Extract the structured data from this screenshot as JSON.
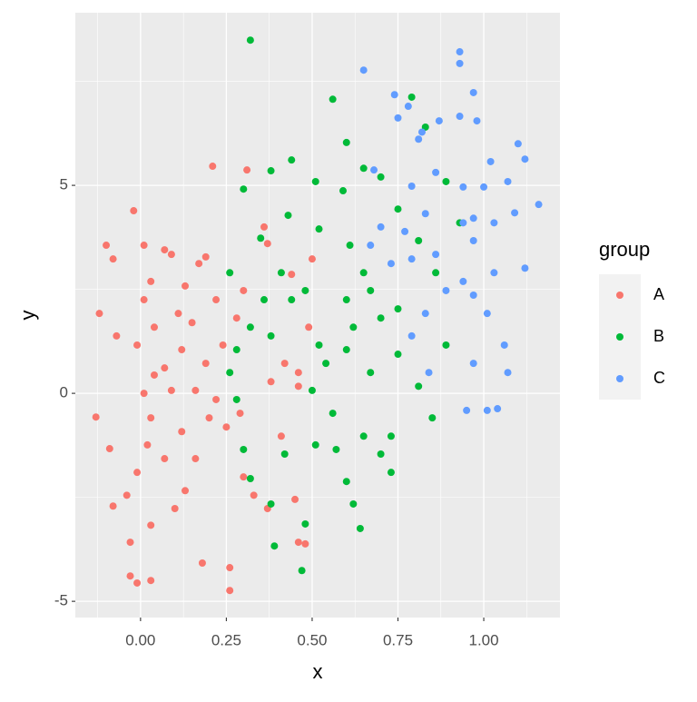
{
  "chart_data": {
    "type": "scatter",
    "x_label": "x",
    "y_label": "y",
    "xlim": [
      -0.19,
      1.222
    ],
    "ylim": [
      -5.39,
      9.15
    ],
    "xticks": [
      {
        "value": 0,
        "label": "0.00"
      },
      {
        "value": 0.25,
        "label": "0.25"
      },
      {
        "value": 0.5,
        "label": "0.50"
      },
      {
        "value": 0.75,
        "label": "0.75"
      },
      {
        "value": 1,
        "label": "1.00"
      }
    ],
    "yticks": [
      -5,
      0,
      5
    ],
    "grid": true,
    "legend_title": "group",
    "legend_position": "right",
    "series": [
      {
        "name": "A",
        "color": "#F8766D",
        "x": [
          -0.13,
          -0.12,
          -0.1,
          -0.08,
          -0.09,
          -0.08,
          -0.07,
          -0.02,
          -0.03,
          -0.03,
          -0.01,
          0.03,
          0.01,
          0.01,
          0.03,
          0.04,
          -0.01,
          0.01,
          0.03,
          0.02,
          -0.01,
          0.03,
          0.07,
          0.09,
          0.07,
          0.09,
          0.11,
          0.13,
          0.15,
          0.17,
          0.19,
          0.21,
          0.31,
          0.18,
          0.26,
          0.26,
          0.1,
          0.13,
          0.16,
          0.12,
          0.2,
          0.22,
          0.25,
          0.19,
          0.24,
          0.22,
          0.28,
          0.3,
          0.36,
          0.37,
          0.38,
          0.41,
          0.45,
          0.46,
          0.48,
          0.37,
          0.33,
          0.3,
          0.07,
          -0.04,
          0.29,
          0.42,
          0.46,
          0.49,
          0.44,
          0.5,
          0.12,
          0.16,
          0.04,
          0.46
        ],
        "values": [
          -0.57,
          1.92,
          3.56,
          3.23,
          -1.33,
          -2.71,
          1.38,
          4.39,
          -3.58,
          -4.39,
          -4.56,
          -4.5,
          3.56,
          2.25,
          2.69,
          1.59,
          1.16,
          0,
          -0.59,
          -1.24,
          -1.9,
          -3.17,
          0.61,
          0.07,
          3.45,
          3.34,
          1.92,
          2.58,
          1.7,
          3.12,
          3.28,
          5.46,
          5.37,
          -4.08,
          -4.19,
          -4.74,
          -2.77,
          -2.34,
          -1.57,
          -0.92,
          -0.59,
          -0.15,
          -0.81,
          0.72,
          1.16,
          2.25,
          1.81,
          2.47,
          4,
          3.6,
          0.28,
          -1.03,
          -2.55,
          -3.58,
          -3.62,
          -2.77,
          -2.45,
          -2.01,
          -1.57,
          -2.45,
          -0.48,
          0.72,
          0.5,
          1.59,
          2.86,
          3.23,
          1.05,
          0.07,
          0.44,
          0.17
        ]
      },
      {
        "name": "B",
        "color": "#00BA38",
        "x": [
          0.32,
          0.3,
          0.38,
          0.44,
          0.56,
          0.6,
          0.65,
          0.79,
          0.83,
          0.89,
          0.93,
          0.51,
          0.59,
          0.52,
          0.61,
          0.7,
          0.75,
          0.81,
          0.86,
          0.89,
          0.81,
          0.85,
          0.73,
          0.73,
          0.7,
          0.65,
          0.62,
          0.64,
          0.6,
          0.57,
          0.56,
          0.51,
          0.48,
          0.47,
          0.39,
          0.38,
          0.32,
          0.42,
          0.3,
          0.28,
          0.26,
          0.28,
          0.32,
          0.26,
          0.36,
          0.38,
          0.44,
          0.48,
          0.52,
          0.54,
          0.6,
          0.62,
          0.67,
          0.7,
          0.75,
          0.65,
          0.6,
          0.41,
          0.35,
          0.43,
          0.67,
          0.75,
          0.5
        ],
        "values": [
          8.49,
          4.91,
          5.35,
          5.61,
          7.07,
          6.03,
          5.41,
          7.12,
          6.4,
          5.09,
          4.1,
          5.09,
          4.87,
          3.95,
          3.56,
          5.2,
          4.43,
          3.67,
          2.9,
          1.16,
          0.17,
          -0.59,
          -1.03,
          -1.9,
          -1.46,
          -1.03,
          -2.66,
          -3.25,
          -2.12,
          -1.35,
          -0.48,
          -1.24,
          -3.14,
          -4.26,
          -3.67,
          -2.66,
          -2.05,
          -1.46,
          -1.35,
          -0.15,
          0.5,
          1.05,
          1.59,
          2.9,
          2.25,
          1.38,
          2.25,
          2.47,
          1.16,
          0.72,
          1.05,
          1.59,
          2.47,
          1.81,
          2.03,
          2.9,
          2.25,
          2.9,
          3.73,
          4.28,
          0.5,
          0.94,
          0.07
        ]
      },
      {
        "name": "C",
        "color": "#619CFF",
        "x": [
          0.93,
          0.93,
          0.65,
          0.74,
          0.97,
          0.78,
          0.75,
          0.87,
          0.98,
          0.93,
          0.81,
          1.1,
          1.02,
          1.12,
          0.68,
          0.94,
          1,
          1.07,
          1.16,
          1.09,
          1.03,
          0.94,
          0.97,
          0.83,
          0.77,
          0.7,
          0.73,
          0.79,
          0.86,
          1.03,
          1.12,
          0.94,
          0.97,
          0.89,
          1.01,
          1.06,
          0.97,
          0.84,
          1.07,
          0.95,
          1.01,
          1.04,
          0.79,
          0.83,
          0.67,
          0.97,
          0.82,
          0.79,
          0.86
        ],
        "values": [
          8.21,
          7.93,
          7.77,
          7.18,
          7.23,
          6.9,
          6.62,
          6.55,
          6.55,
          6.66,
          6.11,
          6,
          5.57,
          5.63,
          5.37,
          4.96,
          4.96,
          5.09,
          4.54,
          4.34,
          4.1,
          4.1,
          3.67,
          4.32,
          3.89,
          4,
          3.12,
          3.23,
          3.34,
          2.9,
          3.01,
          2.69,
          2.36,
          2.47,
          1.92,
          1.16,
          0.72,
          0.5,
          0.5,
          -0.41,
          -0.41,
          -0.37,
          1.38,
          1.92,
          3.56,
          4.21,
          6.28,
          4.98,
          5.31
        ]
      }
    ]
  }
}
